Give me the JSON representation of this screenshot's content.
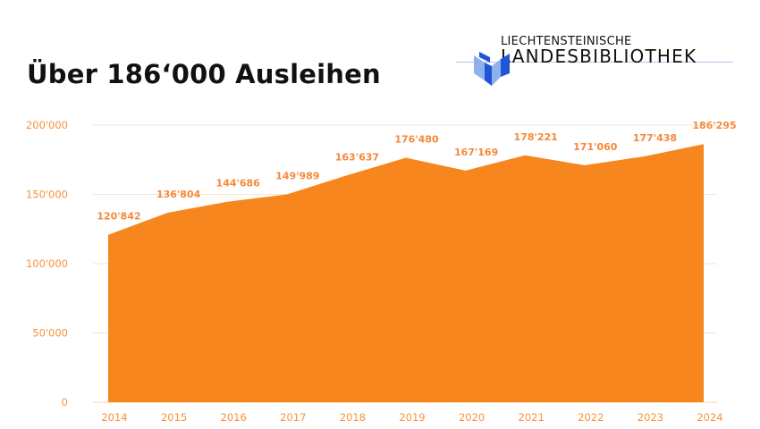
{
  "header": {
    "title": "Über 186‘000 Ausleihen"
  },
  "logo": {
    "line1": "LIECHTENSTEINISCHE",
    "line2": "LANDESBIBLIOTHEK",
    "icon": "library-book-icon",
    "colors": {
      "dark": "#1f55d6",
      "light": "#8fb0ee",
      "rule": "#b9c6e8"
    }
  },
  "chart_data": {
    "type": "area",
    "title": "Über 186‘000 Ausleihen",
    "xlabel": "",
    "ylabel": "",
    "categories": [
      "2014",
      "2015",
      "2016",
      "2017",
      "2018",
      "2019",
      "2020",
      "2021",
      "2022",
      "2023",
      "2024"
    ],
    "values": [
      120842,
      136804,
      144686,
      149989,
      163637,
      176480,
      167169,
      178221,
      171060,
      177438,
      186295
    ],
    "data_labels": [
      "120'842",
      "136'804",
      "144'686",
      "149'989",
      "163'637",
      "176'480",
      "167'169",
      "178'221",
      "171'060",
      "177'438",
      "186'295"
    ],
    "yticks": [
      0,
      50000,
      100000,
      150000,
      200000
    ],
    "ytick_labels": [
      "0",
      "50'000",
      "100'000",
      "150'000",
      "200'000"
    ],
    "ylim": [
      0,
      200000
    ],
    "grid": true,
    "legend": "none",
    "colors": {
      "fill": "#f7861f",
      "grid": "#fde3cc",
      "text": "#f7923a"
    }
  }
}
